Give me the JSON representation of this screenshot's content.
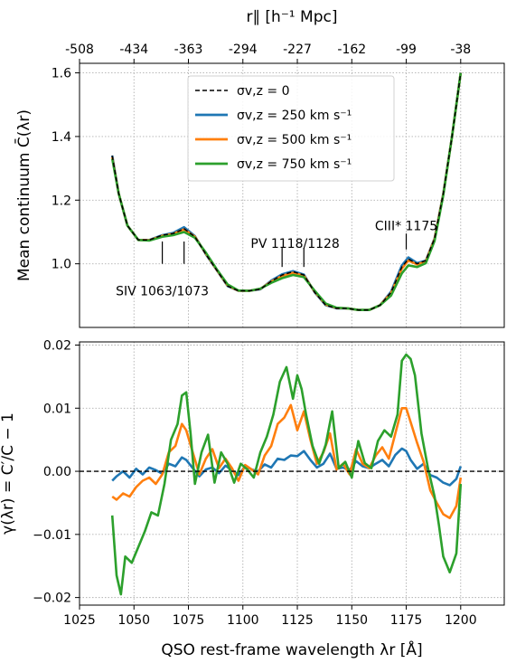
{
  "top_axis": {
    "label": "r∥ [h⁻¹ Mpc]",
    "tick_labels": [
      "-508",
      "-434",
      "-363",
      "-294",
      "-227",
      "-162",
      "-99",
      "-38"
    ],
    "tick_positions_wavelength": [
      1025,
      1050,
      1075,
      1100,
      1125,
      1150,
      1175,
      1200
    ]
  },
  "chart_data": [
    {
      "type": "line",
      "title": "",
      "ylabel": "Mean continuum C̄(λr)",
      "xlabel": "",
      "xlim": [
        1025,
        1220
      ],
      "ylim": [
        0.8,
        1.63
      ],
      "yticks": [
        1.0,
        1.2,
        1.4,
        1.6
      ],
      "ytick_labels": [
        "1.0",
        "1.2",
        "1.4",
        "1.6"
      ],
      "grid": true,
      "legend_position": "top-center",
      "series": [
        {
          "name": "σv,z = 0",
          "color": "#000000",
          "dash": true,
          "x": [
            1040,
            1043,
            1047,
            1052,
            1057,
            1063,
            1068,
            1073,
            1078,
            1083,
            1088,
            1093,
            1098,
            1103,
            1108,
            1113,
            1118,
            1123,
            1128,
            1133,
            1138,
            1143,
            1148,
            1153,
            1158,
            1163,
            1168,
            1173,
            1176,
            1180,
            1184,
            1188,
            1192,
            1196,
            1200
          ],
          "y": [
            1.34,
            1.22,
            1.12,
            1.075,
            1.075,
            1.09,
            1.095,
            1.11,
            1.085,
            1.03,
            0.98,
            0.93,
            0.915,
            0.915,
            0.92,
            0.945,
            0.965,
            0.975,
            0.965,
            0.91,
            0.87,
            0.86,
            0.86,
            0.855,
            0.855,
            0.87,
            0.91,
            0.99,
            1.015,
            1.0,
            1.01,
            1.08,
            1.22,
            1.4,
            1.6
          ]
        },
        {
          "name": "σv,z = 250 km s⁻¹",
          "color": "#1f77b4",
          "dash": false,
          "x": [
            1040,
            1043,
            1047,
            1052,
            1057,
            1063,
            1068,
            1073,
            1078,
            1083,
            1088,
            1093,
            1098,
            1103,
            1108,
            1113,
            1118,
            1123,
            1128,
            1133,
            1138,
            1143,
            1148,
            1153,
            1158,
            1163,
            1168,
            1173,
            1176,
            1180,
            1184,
            1188,
            1192,
            1196,
            1200
          ],
          "y": [
            1.34,
            1.22,
            1.12,
            1.075,
            1.075,
            1.09,
            1.097,
            1.115,
            1.087,
            1.03,
            0.98,
            0.93,
            0.915,
            0.915,
            0.92,
            0.947,
            0.967,
            0.977,
            0.966,
            0.91,
            0.87,
            0.86,
            0.86,
            0.855,
            0.855,
            0.87,
            0.912,
            0.995,
            1.02,
            1.002,
            1.01,
            1.08,
            1.22,
            1.4,
            1.6
          ]
        },
        {
          "name": "σv,z = 500 km s⁻¹",
          "color": "#ff7f0e",
          "dash": false,
          "x": [
            1040,
            1043,
            1047,
            1052,
            1057,
            1063,
            1068,
            1073,
            1078,
            1083,
            1088,
            1093,
            1098,
            1103,
            1108,
            1113,
            1118,
            1123,
            1128,
            1133,
            1138,
            1143,
            1148,
            1153,
            1158,
            1163,
            1168,
            1173,
            1176,
            1180,
            1184,
            1188,
            1192,
            1196,
            1200
          ],
          "y": [
            1.335,
            1.22,
            1.12,
            1.075,
            1.074,
            1.088,
            1.094,
            1.108,
            1.085,
            1.032,
            0.981,
            0.932,
            0.915,
            0.915,
            0.921,
            0.944,
            0.962,
            0.972,
            0.963,
            0.912,
            0.872,
            0.861,
            0.86,
            0.855,
            0.855,
            0.87,
            0.908,
            0.985,
            1.01,
            0.998,
            1.008,
            1.078,
            1.218,
            1.4,
            1.6
          ]
        },
        {
          "name": "σv,z = 750 km s⁻¹",
          "color": "#2ca02c",
          "dash": false,
          "x": [
            1040,
            1043,
            1047,
            1052,
            1057,
            1063,
            1068,
            1073,
            1078,
            1083,
            1088,
            1093,
            1098,
            1103,
            1108,
            1113,
            1118,
            1123,
            1128,
            1133,
            1138,
            1143,
            1148,
            1153,
            1158,
            1163,
            1168,
            1173,
            1176,
            1180,
            1184,
            1188,
            1192,
            1196,
            1200
          ],
          "y": [
            1.33,
            1.22,
            1.12,
            1.075,
            1.073,
            1.085,
            1.09,
            1.1,
            1.082,
            1.035,
            0.983,
            0.935,
            0.916,
            0.915,
            0.922,
            0.94,
            0.955,
            0.965,
            0.958,
            0.915,
            0.875,
            0.862,
            0.86,
            0.855,
            0.855,
            0.87,
            0.9,
            0.97,
            0.995,
            0.99,
            1.002,
            1.072,
            1.215,
            1.4,
            1.6
          ]
        }
      ],
      "annotations": [
        {
          "text": "SIV 1063/1073",
          "label_x": 1063,
          "label_y": 0.915,
          "ticks_x": [
            1063,
            1073
          ],
          "tick_y_range": [
            1.0,
            1.07
          ]
        },
        {
          "text": "PV 1118/1128",
          "label_x": 1124,
          "label_y": 1.065,
          "ticks_x": [
            1118,
            1128
          ],
          "tick_y_range": [
            0.99,
            1.05
          ]
        },
        {
          "text": "CIII* 1175",
          "label_x": 1175,
          "label_y": 1.12,
          "ticks_x": [
            1175
          ],
          "tick_y_range": [
            1.045,
            1.095
          ]
        }
      ]
    },
    {
      "type": "line",
      "title": "",
      "ylabel": "γ(λr) = C̄′/C̄ − 1",
      "xlabel": "QSO rest-frame wavelength λr [Å]",
      "xlim": [
        1025,
        1220
      ],
      "ylim": [
        -0.0212,
        0.0205
      ],
      "xticks": [
        1025,
        1050,
        1075,
        1100,
        1125,
        1150,
        1175,
        1200
      ],
      "xtick_labels": [
        "1025",
        "1050",
        "1075",
        "1100",
        "1125",
        "1150",
        "1175",
        "1200"
      ],
      "yticks": [
        -0.02,
        -0.01,
        0.0,
        0.01,
        0.02
      ],
      "ytick_labels": [
        "−0.02",
        "−0.01",
        "0.00",
        "0.01",
        "0.02"
      ],
      "grid": true,
      "reference_line": 0,
      "series": [
        {
          "name": "σv,z = 0",
          "color": "#000000",
          "dash": true,
          "x": [
            1040,
            1200
          ],
          "y": [
            0,
            0
          ]
        },
        {
          "name": "σv,z = 250 km s⁻¹",
          "color": "#1f77b4",
          "dash": false,
          "x": [
            1040,
            1042,
            1045,
            1048,
            1051,
            1054,
            1057,
            1060,
            1063,
            1066,
            1069,
            1072,
            1074,
            1077,
            1080,
            1083,
            1086,
            1089,
            1092,
            1095,
            1098,
            1101,
            1104,
            1107,
            1110,
            1113,
            1116,
            1119,
            1122,
            1125,
            1128,
            1131,
            1134,
            1137,
            1140,
            1143,
            1146,
            1149,
            1152,
            1155,
            1158,
            1161,
            1164,
            1167,
            1170,
            1173,
            1175,
            1177,
            1180,
            1183,
            1186,
            1189,
            1192,
            1195,
            1198,
            1200
          ],
          "y": [
            -0.0015,
            -0.0008,
            0.0,
            -0.001,
            0.0004,
            -0.0005,
            0.0006,
            0.0002,
            -0.0004,
            0.0012,
            0.0008,
            0.0022,
            0.0018,
            0.0005,
            -0.0008,
            0.0003,
            0.0006,
            -0.0003,
            0.0009,
            0.0002,
            -0.0006,
            0.0008,
            0.0003,
            0.0,
            0.0011,
            0.0006,
            0.002,
            0.0018,
            0.0025,
            0.0024,
            0.0032,
            0.0018,
            0.0006,
            0.0012,
            0.0028,
            0.0004,
            0.0006,
            0.0002,
            0.0016,
            0.0008,
            0.0005,
            0.0012,
            0.0018,
            0.0008,
            0.0026,
            0.0036,
            0.0032,
            0.0018,
            0.0004,
            0.0012,
            -0.0006,
            -0.001,
            -0.0018,
            -0.0022,
            -0.0012,
            0.0008
          ]
        },
        {
          "name": "σv,z = 500 km s⁻¹",
          "color": "#ff7f0e",
          "dash": false,
          "x": [
            1040,
            1042,
            1045,
            1048,
            1051,
            1054,
            1057,
            1060,
            1063,
            1066,
            1069,
            1072,
            1074,
            1077,
            1080,
            1083,
            1086,
            1089,
            1092,
            1095,
            1098,
            1101,
            1104,
            1107,
            1110,
            1113,
            1116,
            1119,
            1122,
            1125,
            1128,
            1131,
            1134,
            1137,
            1140,
            1143,
            1146,
            1149,
            1152,
            1155,
            1158,
            1161,
            1164,
            1167,
            1170,
            1173,
            1175,
            1177,
            1180,
            1183,
            1186,
            1189,
            1192,
            1195,
            1198,
            1200
          ],
          "y": [
            -0.004,
            -0.0045,
            -0.0035,
            -0.004,
            -0.0025,
            -0.0015,
            -0.001,
            -0.002,
            -0.0005,
            0.003,
            0.004,
            0.0075,
            0.0065,
            0.003,
            -0.0005,
            0.002,
            0.0035,
            0.0005,
            0.002,
            0.0005,
            -0.0015,
            0.001,
            0.0003,
            -0.0005,
            0.0025,
            0.004,
            0.0075,
            0.0085,
            0.0105,
            0.0065,
            0.0095,
            0.005,
            0.0012,
            0.003,
            0.006,
            0.0003,
            0.0012,
            -0.0005,
            0.0035,
            0.0012,
            0.0005,
            0.0025,
            0.0038,
            0.002,
            0.006,
            0.01,
            0.01,
            0.0078,
            0.0045,
            0.0015,
            -0.003,
            -0.005,
            -0.0068,
            -0.0074,
            -0.0055,
            -0.001
          ]
        },
        {
          "name": "σv,z = 750 km s⁻¹",
          "color": "#2ca02c",
          "dash": false,
          "x": [
            1040,
            1042,
            1044,
            1046,
            1049,
            1052,
            1055,
            1058,
            1061,
            1064,
            1067,
            1070,
            1072,
            1074,
            1076,
            1078,
            1081,
            1084,
            1087,
            1090,
            1093,
            1096,
            1099,
            1102,
            1105,
            1108,
            1111,
            1114,
            1117,
            1120,
            1123,
            1125,
            1127,
            1129,
            1132,
            1135,
            1138,
            1141,
            1144,
            1147,
            1150,
            1153,
            1156,
            1159,
            1162,
            1165,
            1168,
            1171,
            1173,
            1175,
            1177,
            1179,
            1182,
            1185,
            1188,
            1190,
            1192,
            1195,
            1198,
            1200
          ],
          "y": [
            -0.007,
            -0.0165,
            -0.0195,
            -0.0135,
            -0.0145,
            -0.012,
            -0.0095,
            -0.0065,
            -0.007,
            -0.002,
            0.005,
            0.0075,
            0.012,
            0.0125,
            0.006,
            -0.002,
            0.003,
            0.0058,
            -0.0018,
            0.003,
            0.0012,
            -0.0018,
            0.0012,
            0.0003,
            -0.001,
            0.003,
            0.0055,
            0.009,
            0.0142,
            0.0165,
            0.0115,
            0.0152,
            0.013,
            0.009,
            0.004,
            0.0012,
            0.0042,
            0.0095,
            0.0005,
            0.0015,
            -0.001,
            0.0048,
            0.0013,
            0.0005,
            0.0048,
            0.0065,
            0.0055,
            0.009,
            0.0175,
            0.0185,
            0.0178,
            0.0152,
            0.006,
            0.0005,
            -0.004,
            -0.0085,
            -0.0135,
            -0.016,
            -0.013,
            -0.002
          ]
        }
      ]
    }
  ]
}
